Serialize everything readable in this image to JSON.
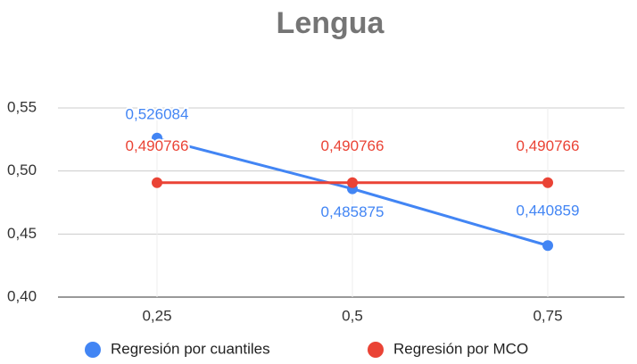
{
  "chart_data": {
    "type": "line",
    "title": "Lengua",
    "categories": [
      "0,25",
      "0,5",
      "0,75"
    ],
    "series": [
      {
        "name": "Regresión por cuantiles",
        "color": "#4285f4",
        "values": [
          0.526084,
          0.485875,
          0.440859
        ],
        "value_labels": [
          "0,526084",
          "0,485875",
          "0,440859"
        ]
      },
      {
        "name": "Regresión por MCO",
        "color": "#ea4335",
        "values": [
          0.490766,
          0.490766,
          0.490766
        ],
        "value_labels": [
          "0,490766",
          "0,490766",
          "0,490766"
        ]
      }
    ],
    "ylim": [
      0.4,
      0.55
    ],
    "yticks": [
      {
        "value": 0.4,
        "label": "0,40"
      },
      {
        "value": 0.45,
        "label": "0,45"
      },
      {
        "value": 0.5,
        "label": "0,50"
      },
      {
        "value": 0.55,
        "label": "0,55"
      }
    ],
    "grid": true,
    "legend": "bottom"
  }
}
